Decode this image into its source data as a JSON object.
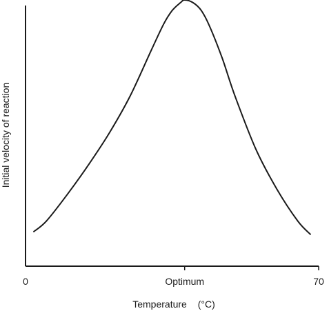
{
  "chart_data": {
    "type": "line",
    "title": "",
    "xlabel": "Temperature",
    "xlabel_unit": "(°C)",
    "ylabel": "Initial velocity of reaction",
    "xlim": [
      0,
      70
    ],
    "ylim": [
      0,
      1
    ],
    "x_ticks": [
      {
        "value": 0,
        "label": "0"
      },
      {
        "value": 38,
        "label": "Optimum"
      },
      {
        "value": 70,
        "label": "70"
      }
    ],
    "grid": false,
    "legend": "none",
    "series": [
      {
        "color": "#1a1a1a",
        "x": [
          2,
          5,
          10,
          15,
          20,
          25,
          30,
          33,
          35,
          37,
          38,
          40,
          42,
          44,
          47,
          50,
          55,
          60,
          65,
          68
        ],
        "y": [
          0.13,
          0.17,
          0.27,
          0.38,
          0.5,
          0.64,
          0.81,
          0.91,
          0.96,
          0.99,
          1.0,
          0.99,
          0.96,
          0.9,
          0.78,
          0.64,
          0.44,
          0.29,
          0.17,
          0.12
        ]
      }
    ]
  }
}
